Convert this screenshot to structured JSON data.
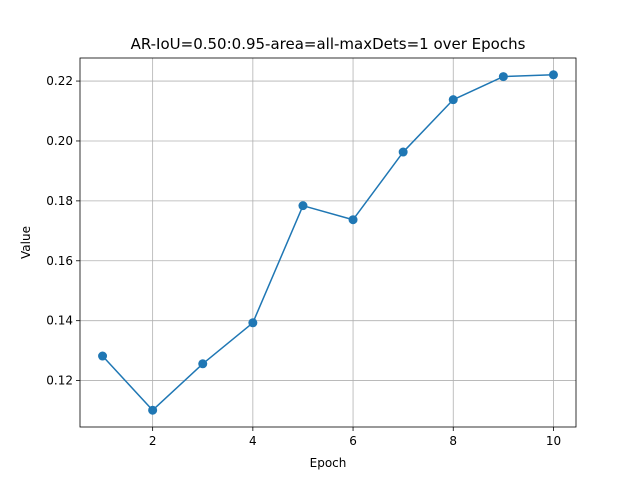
{
  "chart_data": {
    "type": "line",
    "title": "AR-IoU=0.50:0.95-area=all-maxDets=1 over Epochs",
    "xlabel": "Epoch",
    "ylabel": "Value",
    "x": [
      1,
      2,
      3,
      4,
      5,
      6,
      7,
      8,
      9,
      10
    ],
    "series": [
      {
        "values": [
          0.1282,
          0.1101,
          0.1256,
          0.1393,
          0.1784,
          0.1737,
          0.1963,
          0.2138,
          0.2215,
          0.2221
        ]
      }
    ],
    "xlim": [
      0.55,
      10.45
    ],
    "ylim": [
      0.1045,
      0.2277
    ],
    "xticks": [
      2,
      4,
      6,
      8,
      10
    ],
    "yticks": [
      0.12,
      0.14,
      0.16,
      0.18,
      0.2,
      0.22
    ],
    "xtick_labels": [
      "2",
      "4",
      "6",
      "8",
      "10"
    ],
    "ytick_labels": [
      "0.12",
      "0.14",
      "0.16",
      "0.18",
      "0.20",
      "0.22"
    ],
    "grid": true,
    "line_color": "#1f77b4",
    "marker": "circle"
  }
}
